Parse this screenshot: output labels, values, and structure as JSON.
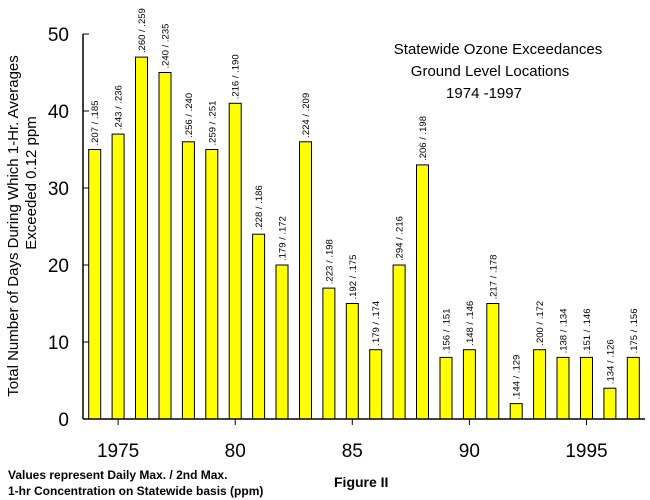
{
  "chart_data": {
    "type": "bar",
    "title_lines": [
      "Statewide Ozone Exceedances",
      "Ground Level Locations",
      "1974 -1997"
    ],
    "ylabel_lines": [
      "Total Number of Days During Which 1-Hr.  Averages",
      "Exceeded 0.12 ppm"
    ],
    "xlabel": "",
    "ylim": [
      0,
      50
    ],
    "yticks": [
      0,
      10,
      20,
      30,
      40,
      50
    ],
    "xticks": [
      1975,
      1980,
      1985,
      1990,
      1995
    ],
    "xtick_labels": [
      "1975",
      "80",
      "85",
      "90",
      "1995"
    ],
    "x": [
      1974,
      1975,
      1976,
      1977,
      1978,
      1979,
      1980,
      1981,
      1982,
      1983,
      1984,
      1985,
      1986,
      1987,
      1988,
      1989,
      1990,
      1991,
      1992,
      1993,
      1994,
      1995,
      1996,
      1997
    ],
    "values": [
      35,
      37,
      47,
      45,
      36,
      35,
      41,
      24,
      20,
      36,
      17,
      15,
      9,
      20,
      33,
      8,
      9,
      15,
      2,
      9,
      8,
      8,
      4,
      8
    ],
    "bar_labels": [
      ".207 / .185",
      ".243 / .236",
      ".260 / .259",
      ".240 / .235",
      ".256 / .240",
      ".259 / .251",
      ".216 / .190",
      ".228 / .186",
      ".179 / .172",
      ".224 / .209",
      ".223 / .198",
      ".192 / .175",
      ".179 / .174",
      ".294 / .216",
      ".206 / .198",
      ".156 / .151",
      ".148 / .146",
      ".217 / .178",
      ".144 / .129",
      ".200 / .172",
      ".138 / .134",
      ".151 / .146",
      ".134 / .126",
      ".175 / .156"
    ],
    "bar_color": "#FFFF00",
    "grid": false
  },
  "footnote_lines": [
    "Values represent Daily Max. / 2nd Max.",
    "1-hr Concentration on Statewide basis (ppm)"
  ],
  "figure_label": "Figure II"
}
